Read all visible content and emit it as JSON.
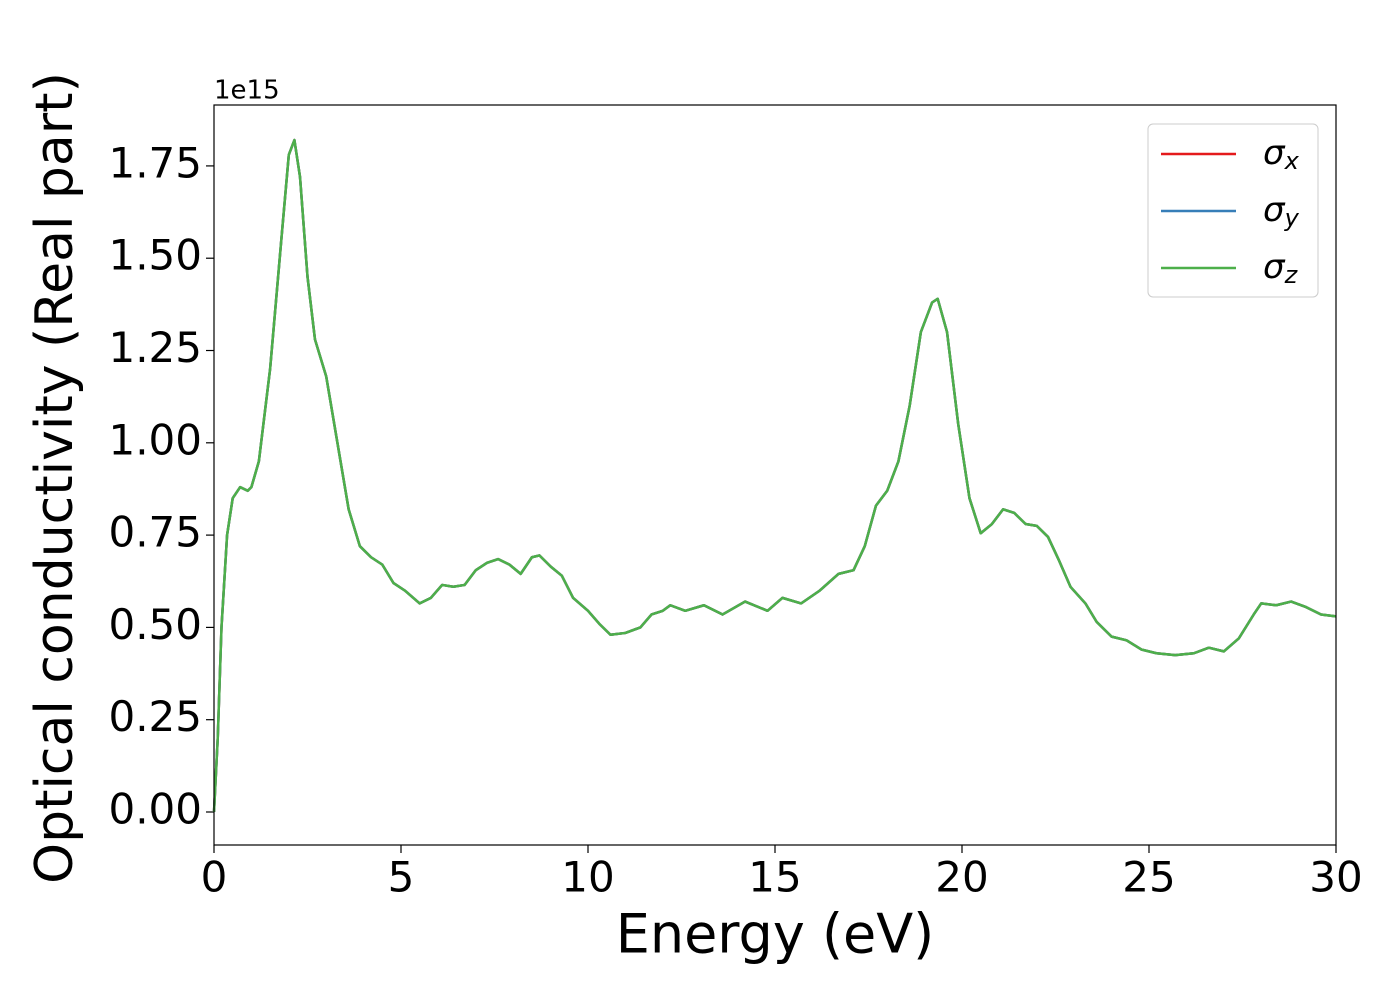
{
  "chart_data": {
    "type": "line",
    "xlabel": "Energy (eV)",
    "ylabel": "Optical conductivity (Real part)",
    "y_offset_text": "1e15",
    "x": [
      0,
      0.1,
      0.2,
      0.35,
      0.5,
      0.7,
      0.9,
      1.0,
      1.2,
      1.5,
      1.8,
      2.0,
      2.15,
      2.3,
      2.5,
      2.7,
      3.0,
      3.3,
      3.6,
      3.9,
      4.2,
      4.5,
      4.8,
      5.1,
      5.5,
      5.8,
      6.1,
      6.4,
      6.7,
      7.0,
      7.3,
      7.6,
      7.9,
      8.2,
      8.5,
      8.7,
      9.0,
      9.3,
      9.6,
      10.0,
      10.3,
      10.6,
      11.0,
      11.4,
      11.7,
      12.0,
      12.2,
      12.6,
      13.1,
      13.6,
      14.2,
      14.8,
      15.2,
      15.7,
      16.2,
      16.7,
      17.1,
      17.4,
      17.7,
      18.0,
      18.3,
      18.6,
      18.9,
      19.2,
      19.35,
      19.6,
      19.9,
      20.2,
      20.5,
      20.8,
      21.1,
      21.4,
      21.7,
      22.0,
      22.3,
      22.6,
      22.9,
      23.3,
      23.6,
      24.0,
      24.4,
      24.8,
      25.2,
      25.7,
      26.2,
      26.6,
      27.0,
      27.4,
      27.8,
      28.0,
      28.4,
      28.8,
      29.2,
      29.6,
      30.0
    ],
    "series": [
      {
        "name": "σx",
        "color": "#e41a1c",
        "values": [
          0,
          0.2,
          0.5,
          0.75,
          0.85,
          0.88,
          0.87,
          0.88,
          0.95,
          1.2,
          1.55,
          1.78,
          1.82,
          1.72,
          1.45,
          1.28,
          1.18,
          1.0,
          0.82,
          0.72,
          0.69,
          0.67,
          0.62,
          0.6,
          0.565,
          0.58,
          0.615,
          0.61,
          0.615,
          0.655,
          0.675,
          0.685,
          0.67,
          0.645,
          0.69,
          0.695,
          0.665,
          0.64,
          0.58,
          0.545,
          0.51,
          0.48,
          0.485,
          0.5,
          0.535,
          0.545,
          0.56,
          0.545,
          0.56,
          0.535,
          0.57,
          0.545,
          0.58,
          0.565,
          0.6,
          0.645,
          0.655,
          0.72,
          0.83,
          0.87,
          0.95,
          1.1,
          1.3,
          1.38,
          1.39,
          1.3,
          1.05,
          0.85,
          0.755,
          0.78,
          0.82,
          0.81,
          0.78,
          0.775,
          0.745,
          0.68,
          0.61,
          0.565,
          0.515,
          0.475,
          0.465,
          0.44,
          0.43,
          0.425,
          0.43,
          0.445,
          0.435,
          0.47,
          0.535,
          0.565,
          0.56,
          0.57,
          0.555,
          0.535,
          0.53
        ]
      },
      {
        "name": "σy",
        "color": "#377eb8",
        "values": [
          0,
          0.2,
          0.5,
          0.75,
          0.85,
          0.88,
          0.87,
          0.88,
          0.95,
          1.2,
          1.55,
          1.78,
          1.82,
          1.72,
          1.45,
          1.28,
          1.18,
          1.0,
          0.82,
          0.72,
          0.69,
          0.67,
          0.62,
          0.6,
          0.565,
          0.58,
          0.615,
          0.61,
          0.615,
          0.655,
          0.675,
          0.685,
          0.67,
          0.645,
          0.69,
          0.695,
          0.665,
          0.64,
          0.58,
          0.545,
          0.51,
          0.48,
          0.485,
          0.5,
          0.535,
          0.545,
          0.56,
          0.545,
          0.56,
          0.535,
          0.57,
          0.545,
          0.58,
          0.565,
          0.6,
          0.645,
          0.655,
          0.72,
          0.83,
          0.87,
          0.95,
          1.1,
          1.3,
          1.38,
          1.39,
          1.3,
          1.05,
          0.85,
          0.755,
          0.78,
          0.82,
          0.81,
          0.78,
          0.775,
          0.745,
          0.68,
          0.61,
          0.565,
          0.515,
          0.475,
          0.465,
          0.44,
          0.43,
          0.425,
          0.43,
          0.445,
          0.435,
          0.47,
          0.535,
          0.565,
          0.56,
          0.57,
          0.555,
          0.535,
          0.53
        ]
      },
      {
        "name": "σz",
        "color": "#4daf4a",
        "values": [
          0,
          0.2,
          0.5,
          0.75,
          0.85,
          0.88,
          0.87,
          0.88,
          0.95,
          1.2,
          1.55,
          1.78,
          1.82,
          1.72,
          1.45,
          1.28,
          1.18,
          1.0,
          0.82,
          0.72,
          0.69,
          0.67,
          0.62,
          0.6,
          0.565,
          0.58,
          0.615,
          0.61,
          0.615,
          0.655,
          0.675,
          0.685,
          0.67,
          0.645,
          0.69,
          0.695,
          0.665,
          0.64,
          0.58,
          0.545,
          0.51,
          0.48,
          0.485,
          0.5,
          0.535,
          0.545,
          0.56,
          0.545,
          0.56,
          0.535,
          0.57,
          0.545,
          0.58,
          0.565,
          0.6,
          0.645,
          0.655,
          0.72,
          0.83,
          0.87,
          0.95,
          1.1,
          1.3,
          1.38,
          1.39,
          1.3,
          1.05,
          0.85,
          0.755,
          0.78,
          0.82,
          0.81,
          0.78,
          0.775,
          0.745,
          0.68,
          0.61,
          0.565,
          0.515,
          0.475,
          0.465,
          0.44,
          0.43,
          0.425,
          0.43,
          0.445,
          0.435,
          0.47,
          0.535,
          0.565,
          0.56,
          0.57,
          0.555,
          0.535,
          0.53
        ]
      }
    ],
    "xlim": [
      0,
      30
    ],
    "xticks": [
      0,
      5,
      10,
      15,
      20,
      25,
      30
    ],
    "ylim": [
      -0.0894,
      1.915
    ],
    "yticks": [
      {
        "value": 0,
        "label": "0.00"
      },
      0.25,
      {
        "value": 0.5,
        "label": "0.50"
      },
      0.75,
      {
        "value": 1,
        "label": "1.00"
      },
      1.25,
      {
        "value": 1.5,
        "label": "1.50"
      },
      1.75
    ],
    "grid": false,
    "legend": "upper right"
  }
}
